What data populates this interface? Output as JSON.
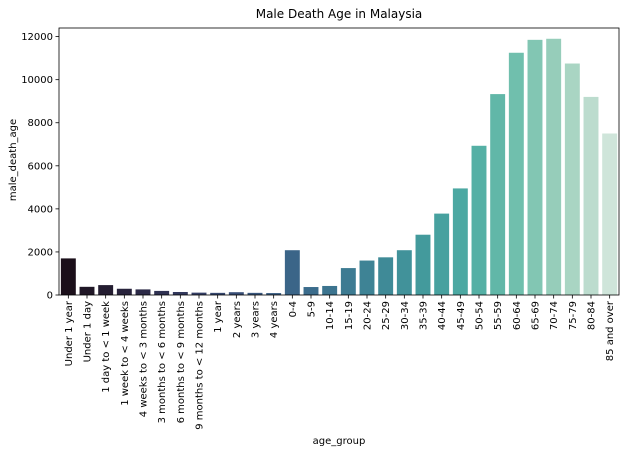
{
  "chart_data": {
    "type": "bar",
    "title": "Male Death Age in Malaysia",
    "xlabel": "age_group",
    "ylabel": "male_death_age",
    "ylim": [
      0,
      12400
    ],
    "yticks": [
      0,
      2000,
      4000,
      6000,
      8000,
      10000,
      12000
    ],
    "categories": [
      "Under 1 year",
      "Under 1 day",
      "1 day to < 1 week",
      "1 week to < 4 weeks",
      "4 weeks to < 3 months",
      "3 months to < 6 months",
      "6 months to < 9 months",
      "9 months to < 12 months",
      "1 year",
      "2 years",
      "3 years",
      "4 years",
      "0-4",
      "5-9",
      "10-14",
      "15-19",
      "20-24",
      "25-29",
      "30-34",
      "35-39",
      "40-44",
      "45-49",
      "50-54",
      "55-59",
      "60-64",
      "65-69",
      "70-74",
      "75-79",
      "80-84",
      "85 and over"
    ],
    "values": [
      1700,
      380,
      460,
      290,
      260,
      190,
      140,
      110,
      100,
      130,
      100,
      90,
      2080,
      370,
      420,
      1250,
      1600,
      1750,
      2080,
      2800,
      3780,
      4950,
      6930,
      9330,
      11250,
      11850,
      11900,
      10750,
      9200,
      7500
    ],
    "colors": [
      "#1b0f1a",
      "#201726",
      "#241d31",
      "#28233c",
      "#2c2a47",
      "#2f3152",
      "#32385c",
      "#353f66",
      "#36476e",
      "#384e76",
      "#39567d",
      "#3a5e83",
      "#3b6588",
      "#3b6c8c",
      "#3c748f",
      "#3d7b92",
      "#3e8395",
      "#3f8a97",
      "#41929a",
      "#439a9c",
      "#47a19f",
      "#4ca8a2",
      "#55b0a5",
      "#61b7a8",
      "#70bfad",
      "#82c6b3",
      "#96cdba",
      "#a9d5c3",
      "#bcdcce",
      "#cfe5da"
    ]
  }
}
